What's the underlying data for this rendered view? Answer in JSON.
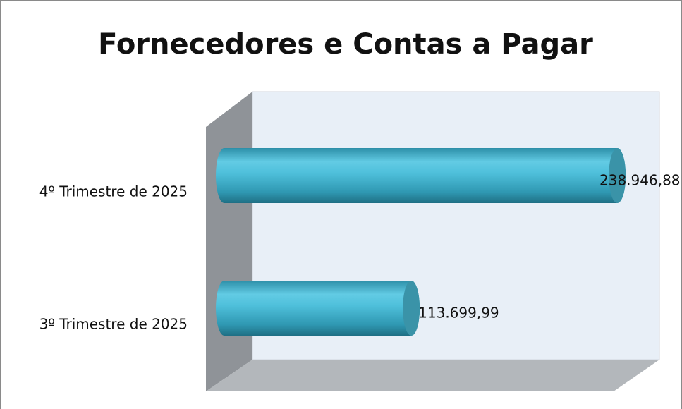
{
  "chart_data": {
    "type": "bar",
    "orientation": "horizontal",
    "title": "Fornecedores e Contas a Pagar",
    "categories": [
      "4º Trimestre de 2025",
      "3º Trimestre de 2025"
    ],
    "values": [
      238946.88,
      113699.99
    ],
    "value_labels": [
      "238.946,88",
      "113.699,99"
    ],
    "color": "#4bbcd8",
    "xlim": [
      0,
      250000
    ]
  }
}
